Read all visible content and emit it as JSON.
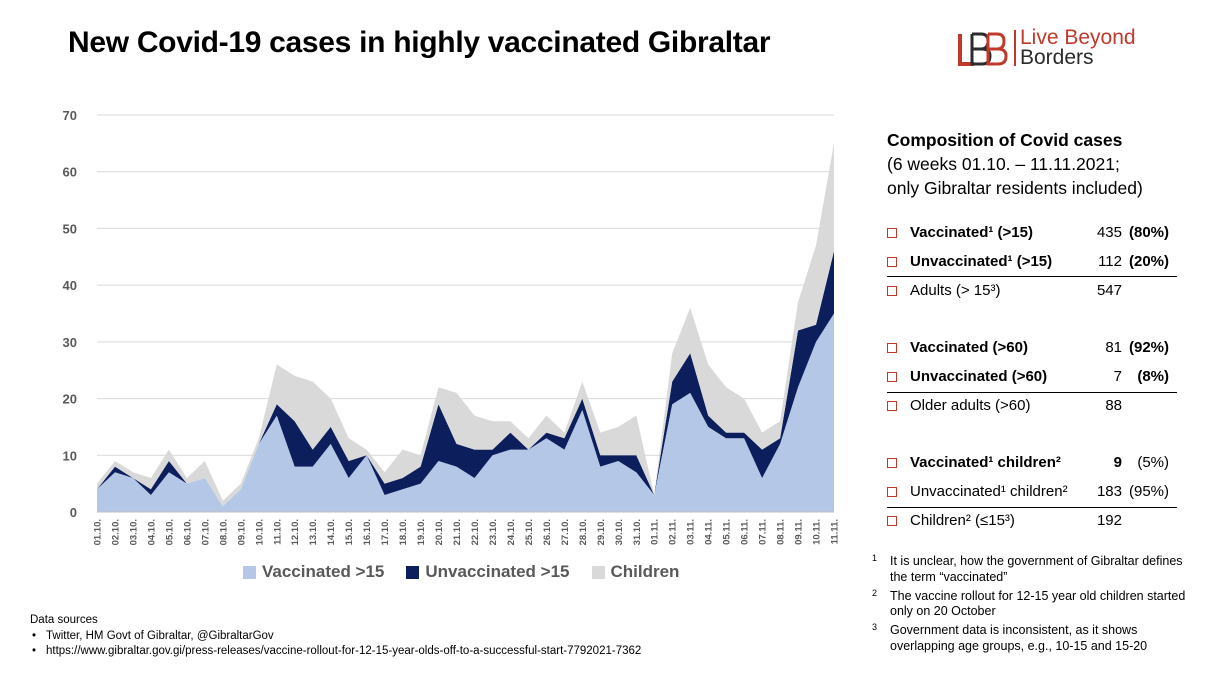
{
  "title": "New Covid-19 cases in highly vaccinated Gibraltar",
  "logo": {
    "line1": "Live Beyond",
    "line2": "Borders",
    "color": "#c0392b"
  },
  "chart_data": {
    "type": "area",
    "stacked": true,
    "ylim": [
      0,
      70
    ],
    "yticks": [
      0,
      10,
      20,
      30,
      40,
      50,
      60,
      70
    ],
    "grid": true,
    "legend_position": "bottom",
    "categories": [
      "01.10.",
      "02.10.",
      "03.10.",
      "04.10.",
      "05.10.",
      "06.10.",
      "07.10.",
      "08.10.",
      "09.10.",
      "10.10.",
      "11.10.",
      "12.10.",
      "13.10.",
      "14.10.",
      "15.10.",
      "16.10.",
      "17.10.",
      "18.10.",
      "19.10.",
      "20.10.",
      "21.10.",
      "22.10.",
      "23.10.",
      "24.10.",
      "25.10.",
      "26.10.",
      "27.10.",
      "28.10.",
      "29.10.",
      "30.10.",
      "31.10.",
      "01.11.",
      "02.11.",
      "03.11.",
      "04.11.",
      "05.11.",
      "06.11.",
      "07.11.",
      "08.11.",
      "09.11.",
      "10.11.",
      "11.11."
    ],
    "series": [
      {
        "name": "Vaccinated >15",
        "color": "#b4c7e7",
        "values": [
          4,
          7,
          6,
          3,
          7,
          5,
          6,
          1,
          4,
          12,
          17,
          8,
          8,
          12,
          6,
          10,
          3,
          4,
          5,
          9,
          8,
          6,
          10,
          11,
          11,
          13,
          11,
          18,
          8,
          9,
          7,
          3,
          19,
          21,
          15,
          13,
          13,
          6,
          12,
          22,
          30,
          35
        ]
      },
      {
        "name": "Unvaccinated >15",
        "color": "#0c1f5c",
        "values": [
          0,
          1,
          0,
          1,
          2,
          0,
          0,
          0,
          0,
          0,
          2,
          8,
          3,
          3,
          3,
          0,
          2,
          2,
          3,
          10,
          4,
          5,
          1,
          3,
          0,
          1,
          2,
          2,
          2,
          1,
          3,
          0,
          4,
          7,
          2,
          1,
          1,
          5,
          1,
          10,
          3,
          11
        ]
      },
      {
        "name": "Children",
        "color": "#d9d9d9",
        "values": [
          1,
          1,
          1,
          2,
          2,
          1,
          3,
          1,
          1,
          1,
          7,
          8,
          12,
          5,
          4,
          1,
          2,
          5,
          2,
          3,
          9,
          6,
          5,
          2,
          2,
          3,
          1,
          3,
          4,
          5,
          7,
          0,
          5,
          8,
          9,
          8,
          6,
          3,
          3,
          5,
          14,
          19
        ]
      }
    ]
  },
  "sources": {
    "heading": "Data sources",
    "items": [
      "Twitter, HM Govt of Gibraltar, @GibraltarGov",
      "https://www.gibraltar.gov.gi/press-releases/vaccine-rollout-for-12-15-year-olds-off-to-a-successful-start-7792021-7362"
    ]
  },
  "composition": {
    "title": "Composition of Covid cases",
    "sub1": "(6 weeks 01.10. – 11.11.2021;",
    "sub2": "only Gibraltar residents included)",
    "group1": [
      {
        "label": "Vaccinated¹ (>15)",
        "value": "435",
        "pct": "(80%)"
      },
      {
        "label": "Unvaccinated¹  (>15)",
        "value": "112",
        "pct": "(20%)"
      },
      {
        "label": "Adults (> 15³)",
        "value": "547",
        "pct": ""
      }
    ],
    "group2": [
      {
        "label": "Vaccinated (>60)",
        "value": "81",
        "pct": "(92%)"
      },
      {
        "label": "Unvaccinated (>60)",
        "value": "7",
        "pct": "(8%)"
      },
      {
        "label": "Older adults (>60)",
        "value": "88",
        "pct": ""
      }
    ],
    "group3": [
      {
        "label": "Vaccinated¹ children²",
        "value": "9",
        "pct": "(5%)"
      },
      {
        "label": "Unvaccinated¹ children²",
        "value": "183",
        "pct": "(95%)"
      },
      {
        "label": "Children² (≤15³)",
        "value": "192",
        "pct": ""
      }
    ]
  },
  "footnotes": [
    {
      "mark": "1",
      "text": "It is unclear, how the government of Gibraltar defines the term “vaccinated”"
    },
    {
      "mark": "2",
      "text": "The vaccine rollout for 12-15 year old children started only on 20 October"
    },
    {
      "mark": "3",
      "text": "Government data is inconsistent, as it shows overlapping age groups, e.g., 10-15 and 15-20"
    }
  ]
}
